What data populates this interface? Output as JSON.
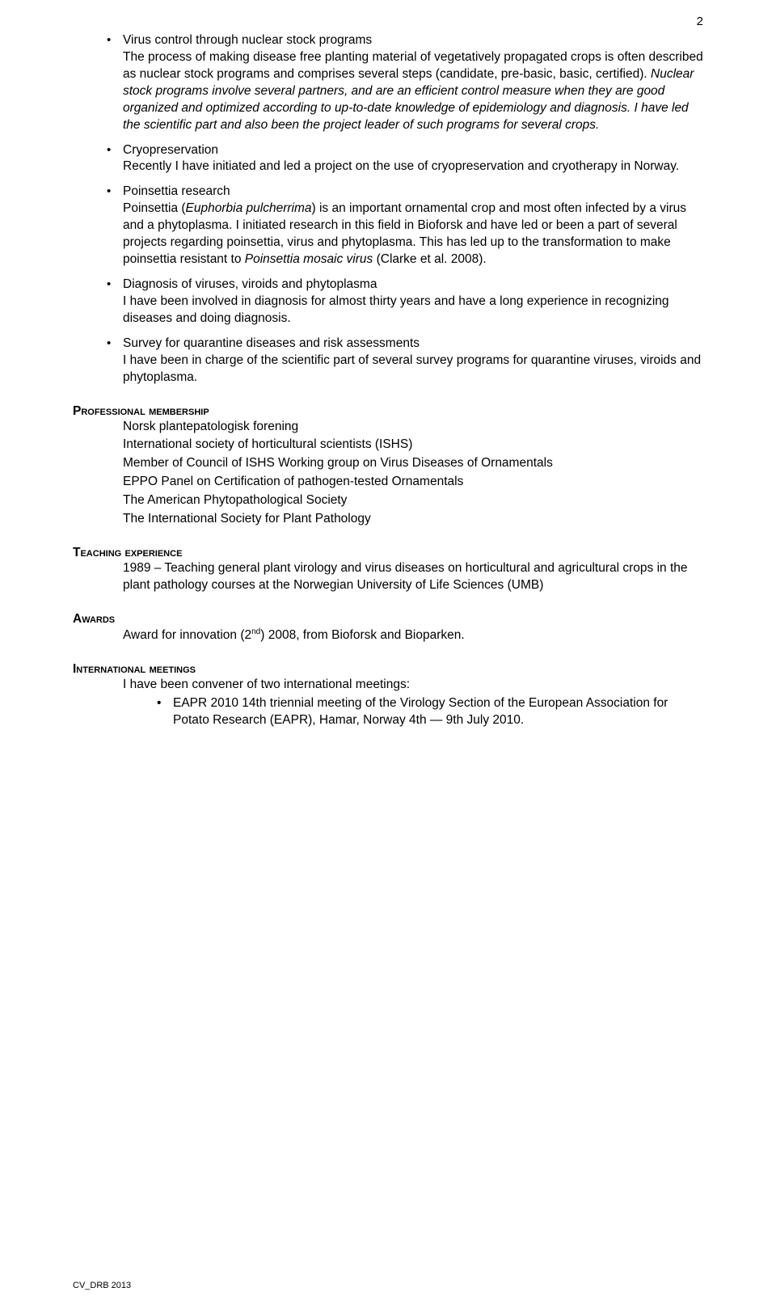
{
  "page_number": "2",
  "bullets": [
    {
      "title": "Virus control through nuclear stock programs",
      "body_parts": [
        {
          "text": "The process of making disease free planting material of vegetatively propagated crops is often described as nuclear stock programs and comprises several steps (candidate, pre-basic, basic, certified).",
          "italic": false
        },
        {
          "text": "Nuclear stock programs involve several partners, and are an efficient control measure when they are good organized and optimized according to up-to-date knowledge of epidemiology and diagnosis. I have led the scientific part and also been the project leader of such programs for several crops.",
          "italic": true
        }
      ]
    },
    {
      "title": "Cryopreservation",
      "body_parts": [
        {
          "text": "Recently I have initiated and led a project on the use of cryopreservation and cryotherapy in Norway.",
          "italic": false
        }
      ]
    },
    {
      "title": "Poinsettia research",
      "body_html": "Poinsettia (<span class=\"italic\">Euphorbia pulcherrima</span>) is an important ornamental crop and most often infected by a virus and a phytoplasma. I initiated research in this field in Bioforsk and have led or been a part of several projects regarding poinsettia, virus and phytoplasma. This has led up to the transformation to make poinsettia resistant to <span class=\"italic\">Poinsettia mosaic virus</span> (Clarke et al. 2008)."
    },
    {
      "title": "Diagnosis of viruses, viroids and phytoplasma",
      "body_parts": [
        {
          "text": "I have been involved in diagnosis for almost thirty years and have a long experience in recognizing diseases and doing diagnosis.",
          "italic": false
        }
      ]
    },
    {
      "title": "Survey for quarantine diseases and risk assessments",
      "body_parts": [
        {
          "text": "I have been in charge of the scientific part of several survey programs for quarantine viruses, viroids and phytoplasma.",
          "italic": false
        }
      ]
    }
  ],
  "sections": {
    "membership": {
      "heading": "Professional membership",
      "lines": [
        "Norsk plantepatologisk forening",
        "International society of horticultural scientists (ISHS)",
        "Member of Council of ISHS Working group on Virus Diseases of Ornamentals",
        "EPPO Panel on Certification of pathogen-tested Ornamentals",
        "The American Phytopathological Society",
        "The International Society for Plant Pathology"
      ]
    },
    "teaching": {
      "heading": "Teaching experience",
      "text": "1989 – Teaching general plant virology and virus diseases on horticultural and agricultural crops in the plant pathology courses at the Norwegian University of Life Sciences (UMB)"
    },
    "awards": {
      "heading": "Awards",
      "text_before": "Award for innovation (2",
      "sup": "nd",
      "text_after": ") 2008, from Bioforsk and Bioparken."
    },
    "meetings": {
      "heading": "International meetings",
      "intro": "I have been convener of two international meetings:",
      "items": [
        "EAPR 2010 14th triennial meeting of the Virology Section of the European Association for Potato Research (EAPR), Hamar, Norway 4th — 9th July 2010."
      ]
    }
  },
  "footer": "CV_DRB 2013"
}
